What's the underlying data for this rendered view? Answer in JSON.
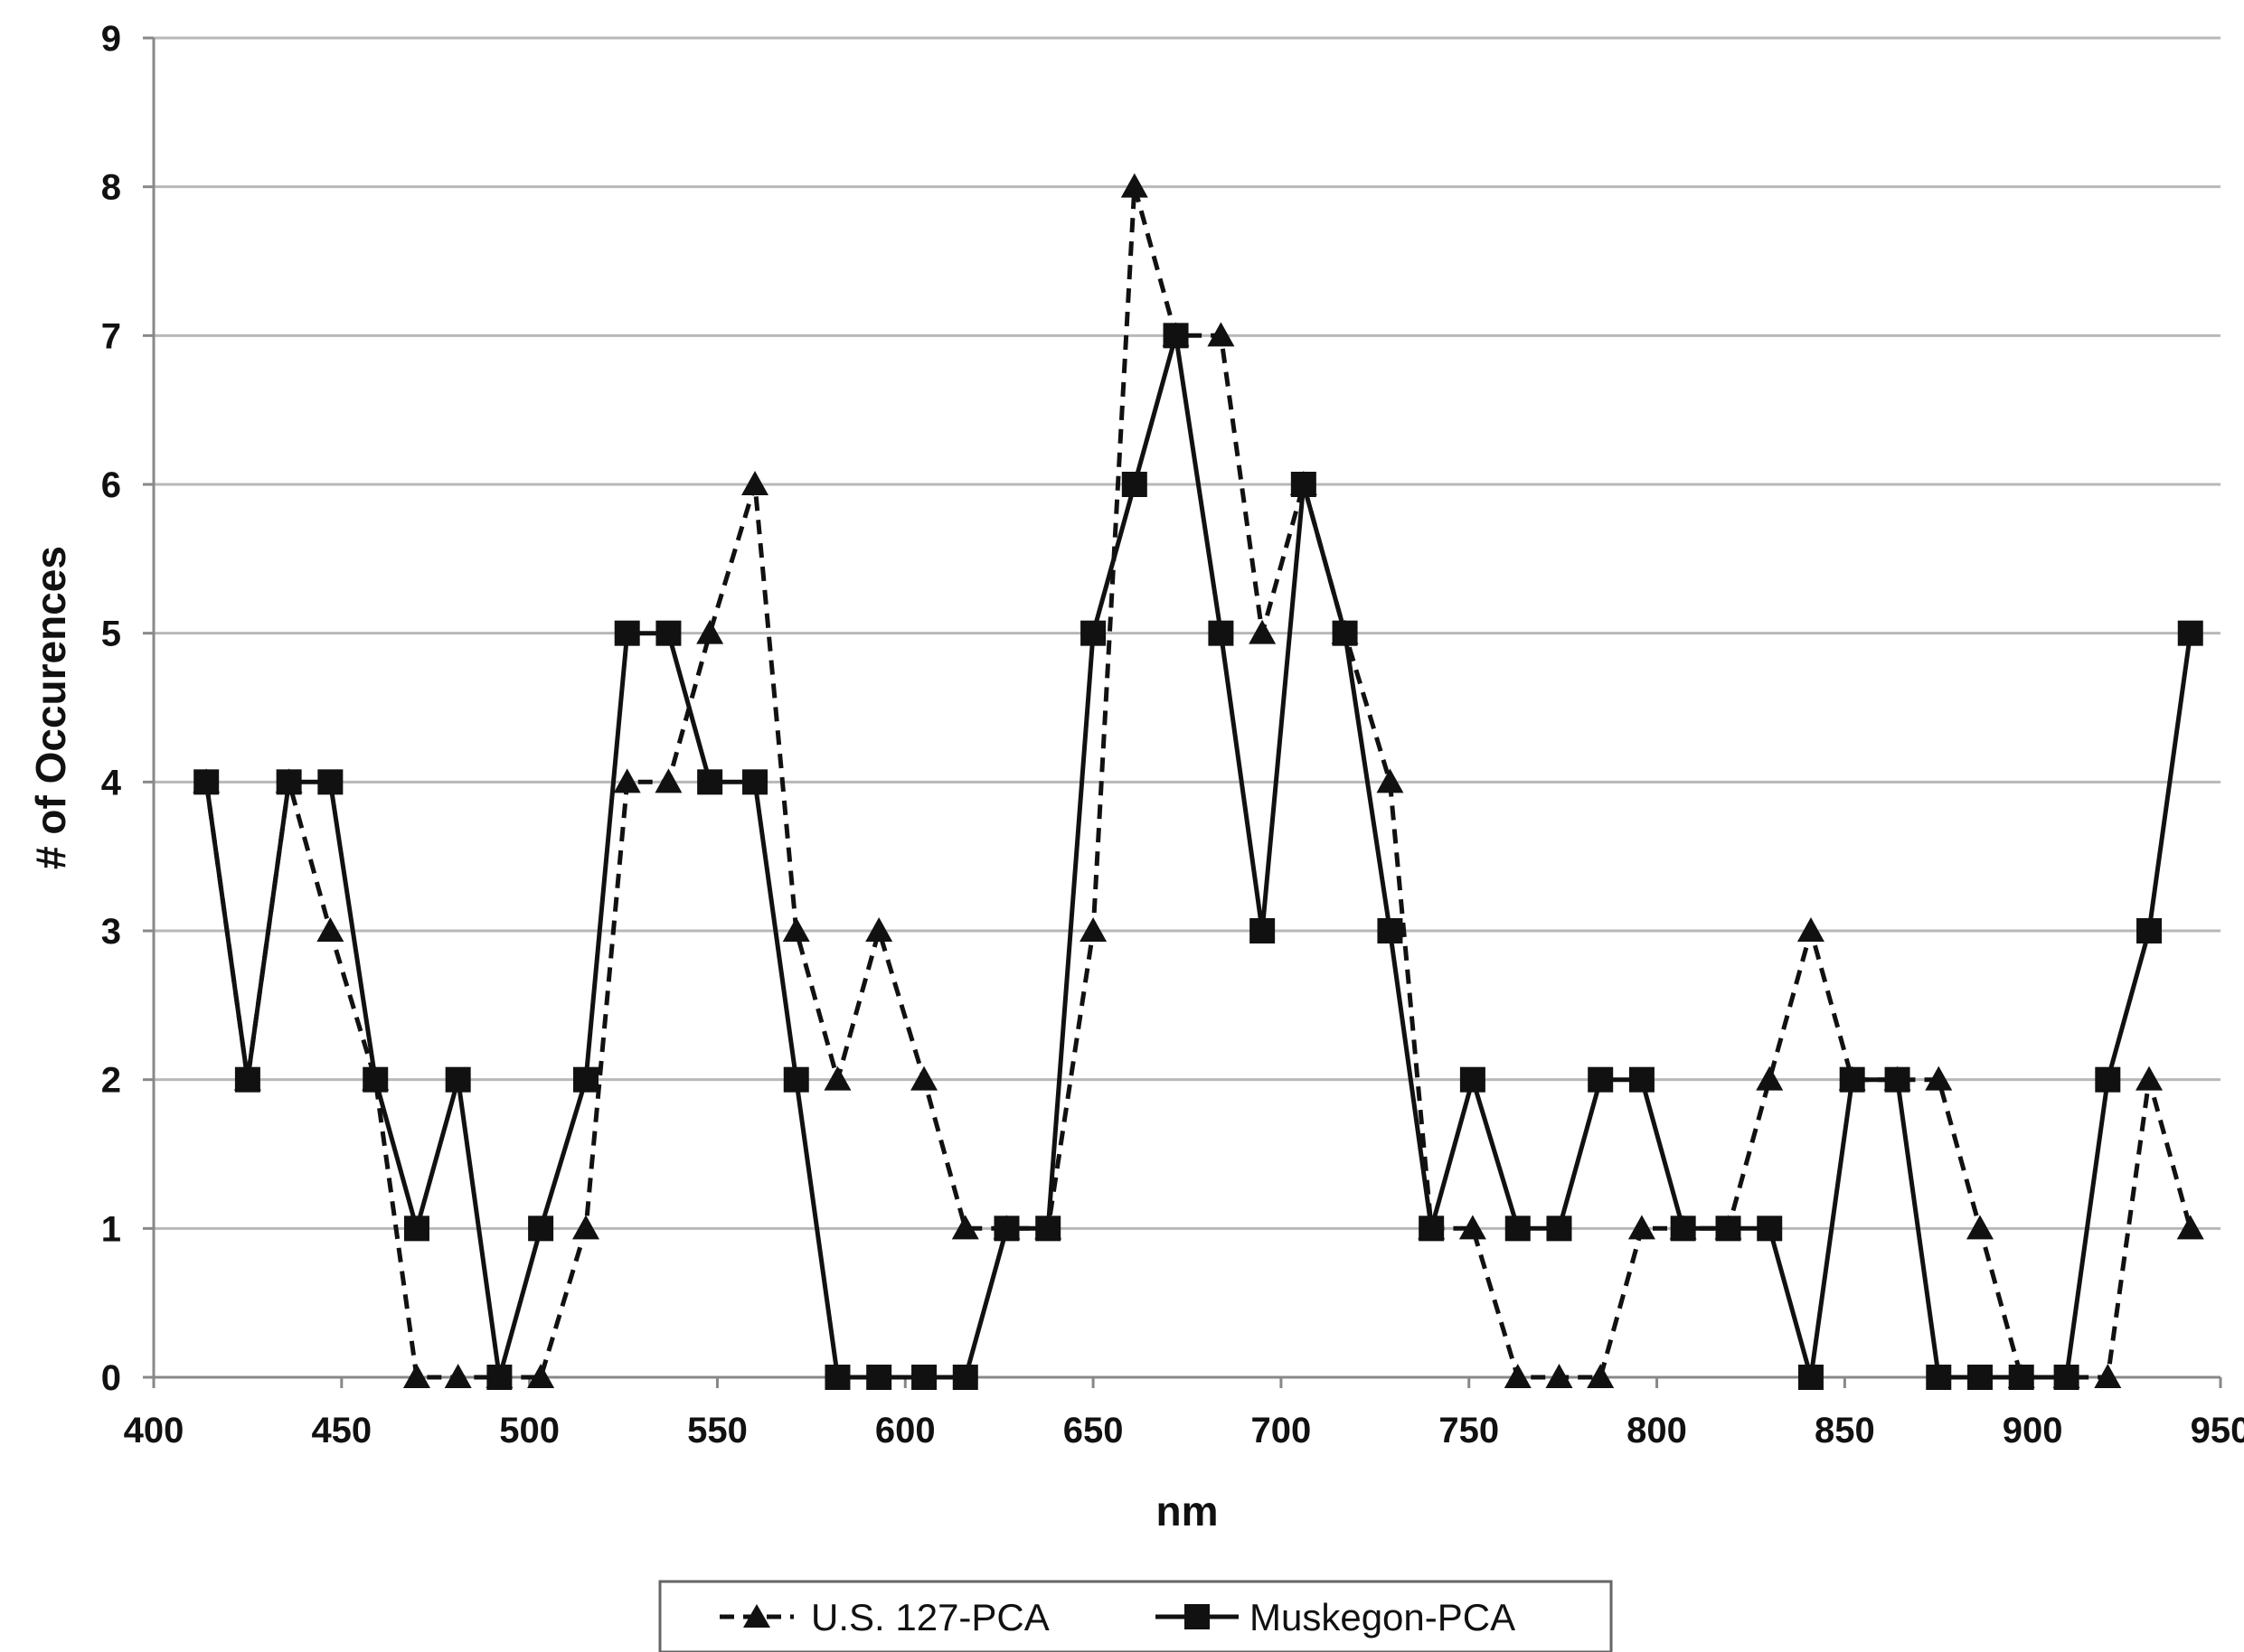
{
  "chart_data": {
    "type": "line",
    "title": "",
    "xlabel": "nm",
    "ylabel": "# of Occurences",
    "xlim": [
      400,
      950
    ],
    "ylim": [
      0,
      9
    ],
    "xticks": [
      400,
      450,
      500,
      550,
      600,
      650,
      700,
      750,
      800,
      850,
      900,
      950
    ],
    "yticks": [
      0,
      1,
      2,
      3,
      4,
      5,
      6,
      7,
      8,
      9
    ],
    "grid": "horizontal",
    "legend_position": "bottom",
    "series": [
      {
        "name": "U.S. 127-PCA",
        "line_style": "dashed",
        "marker": "triangle",
        "color": "#111111",
        "points": [
          [
            414,
            4
          ],
          [
            425,
            2
          ],
          [
            436,
            4
          ],
          [
            447,
            3
          ],
          [
            459,
            2
          ],
          [
            470,
            0
          ],
          [
            481,
            0
          ],
          [
            492,
            0
          ],
          [
            503,
            0
          ],
          [
            515,
            1
          ],
          [
            526,
            4
          ],
          [
            537,
            4
          ],
          [
            548,
            5
          ],
          [
            560,
            6
          ],
          [
            571,
            3
          ],
          [
            582,
            2
          ],
          [
            593,
            3
          ],
          [
            605,
            2
          ],
          [
            616,
            1
          ],
          [
            627,
            1
          ],
          [
            638,
            1
          ],
          [
            650,
            3
          ],
          [
            661,
            8
          ],
          [
            672,
            7
          ],
          [
            684,
            7
          ],
          [
            695,
            5
          ],
          [
            706,
            6
          ],
          [
            717,
            5
          ],
          [
            729,
            4
          ],
          [
            740,
            1
          ],
          [
            751,
            1
          ],
          [
            763,
            0
          ],
          [
            774,
            0
          ],
          [
            785,
            0
          ],
          [
            796,
            1
          ],
          [
            807,
            1
          ],
          [
            819,
            1
          ],
          [
            830,
            2
          ],
          [
            841,
            3
          ],
          [
            852,
            2
          ],
          [
            864,
            2
          ],
          [
            875,
            2
          ],
          [
            886,
            1
          ],
          [
            897,
            0
          ],
          [
            909,
            0
          ],
          [
            920,
            0
          ],
          [
            931,
            2
          ],
          [
            942,
            1
          ]
        ]
      },
      {
        "name": "Muskegon-PCA",
        "line_style": "solid",
        "marker": "square",
        "color": "#111111",
        "points": [
          [
            414,
            4
          ],
          [
            425,
            2
          ],
          [
            436,
            4
          ],
          [
            447,
            4
          ],
          [
            459,
            2
          ],
          [
            470,
            1
          ],
          [
            481,
            2
          ],
          [
            492,
            0
          ],
          [
            503,
            1
          ],
          [
            515,
            2
          ],
          [
            526,
            5
          ],
          [
            537,
            5
          ],
          [
            548,
            4
          ],
          [
            560,
            4
          ],
          [
            571,
            2
          ],
          [
            582,
            0
          ],
          [
            593,
            0
          ],
          [
            605,
            0
          ],
          [
            616,
            0
          ],
          [
            627,
            1
          ],
          [
            638,
            1
          ],
          [
            650,
            5
          ],
          [
            661,
            6
          ],
          [
            672,
            7
          ],
          [
            684,
            5
          ],
          [
            695,
            3
          ],
          [
            706,
            6
          ],
          [
            717,
            5
          ],
          [
            729,
            3
          ],
          [
            740,
            1
          ],
          [
            751,
            2
          ],
          [
            763,
            1
          ],
          [
            774,
            1
          ],
          [
            785,
            2
          ],
          [
            796,
            2
          ],
          [
            807,
            1
          ],
          [
            819,
            1
          ],
          [
            830,
            1
          ],
          [
            841,
            0
          ],
          [
            852,
            2
          ],
          [
            864,
            2
          ],
          [
            875,
            0
          ],
          [
            886,
            0
          ],
          [
            897,
            0
          ],
          [
            909,
            0
          ],
          [
            920,
            2
          ],
          [
            931,
            3
          ],
          [
            942,
            5
          ]
        ]
      }
    ]
  }
}
